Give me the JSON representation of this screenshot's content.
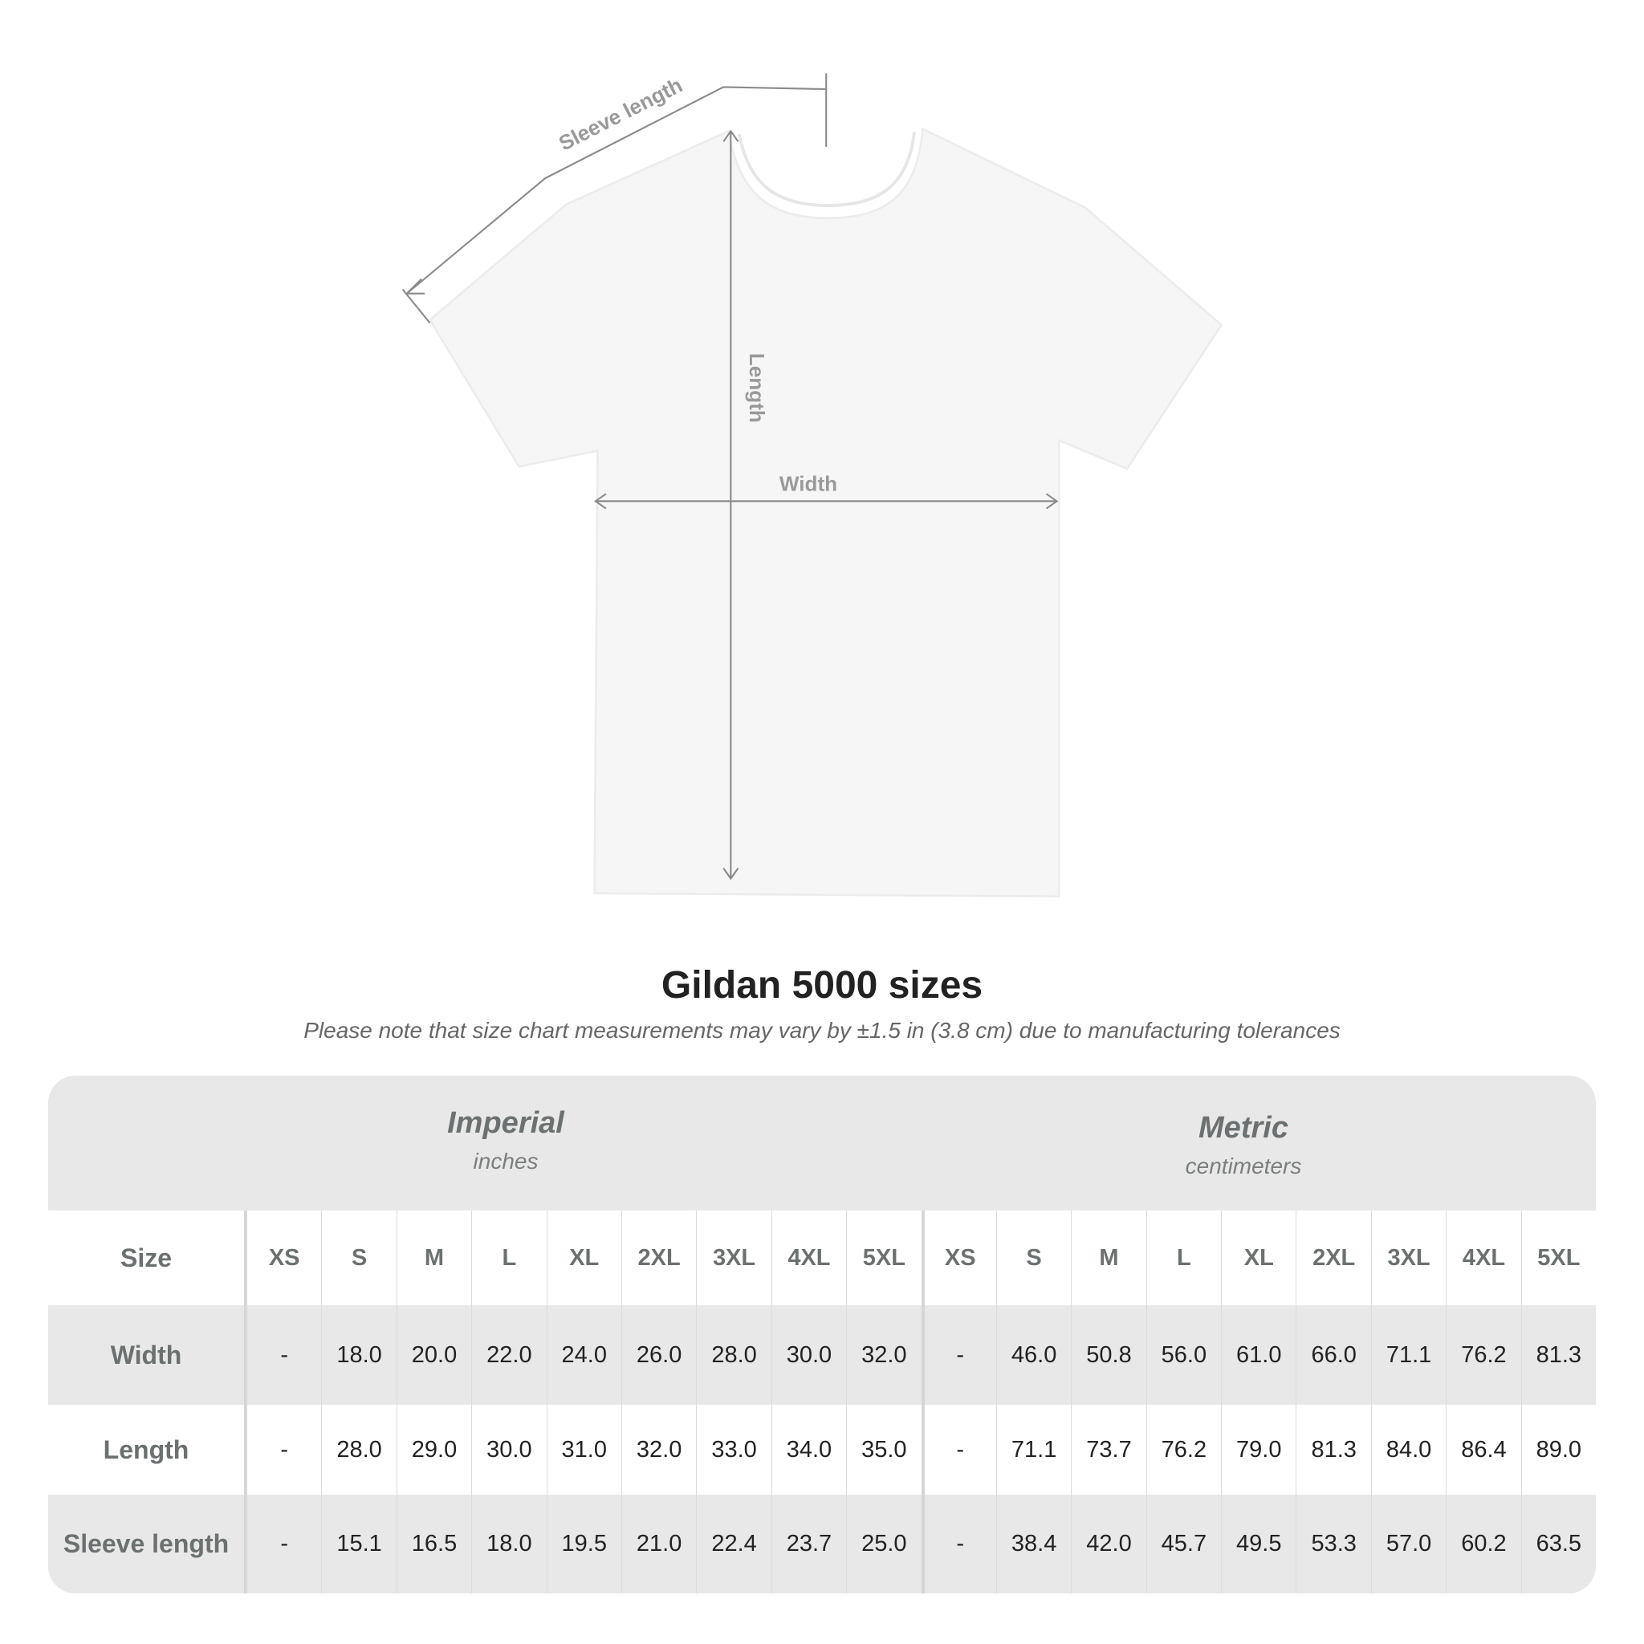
{
  "diagram": {
    "labels": {
      "sleeve": "Sleeve length",
      "length": "Length",
      "width": "Width"
    },
    "shirt_color": "#f6f6f6",
    "line_color": "#8a8a8a"
  },
  "title": "Gildan 5000 sizes",
  "note": "Please note that size chart measurements may vary by ±1.5 in (3.8 cm) due to manufacturing tolerances",
  "table": {
    "imperial": {
      "name": "Imperial",
      "unit": "inches"
    },
    "metric": {
      "name": "Metric",
      "unit": "centimeters"
    },
    "size_label": "Size",
    "sizes": [
      "XS",
      "S",
      "M",
      "L",
      "XL",
      "2XL",
      "3XL",
      "4XL",
      "5XL"
    ],
    "rows": [
      {
        "label": "Width",
        "imperial": [
          "-",
          "18.0",
          "20.0",
          "22.0",
          "24.0",
          "26.0",
          "28.0",
          "30.0",
          "32.0"
        ],
        "metric": [
          "-",
          "46.0",
          "50.8",
          "56.0",
          "61.0",
          "66.0",
          "71.1",
          "76.2",
          "81.3"
        ]
      },
      {
        "label": "Length",
        "imperial": [
          "-",
          "28.0",
          "29.0",
          "30.0",
          "31.0",
          "32.0",
          "33.0",
          "34.0",
          "35.0"
        ],
        "metric": [
          "-",
          "71.1",
          "73.7",
          "76.2",
          "79.0",
          "81.3",
          "84.0",
          "86.4",
          "89.0"
        ]
      },
      {
        "label": "Sleeve length",
        "imperial": [
          "-",
          "15.1",
          "16.5",
          "18.0",
          "19.5",
          "21.0",
          "22.4",
          "23.7",
          "25.0"
        ],
        "metric": [
          "-",
          "38.4",
          "42.0",
          "45.7",
          "49.5",
          "53.3",
          "57.0",
          "60.2",
          "63.5"
        ]
      }
    ],
    "colors": {
      "band": "#e8e8e8",
      "header_text": "#6b7070"
    }
  }
}
